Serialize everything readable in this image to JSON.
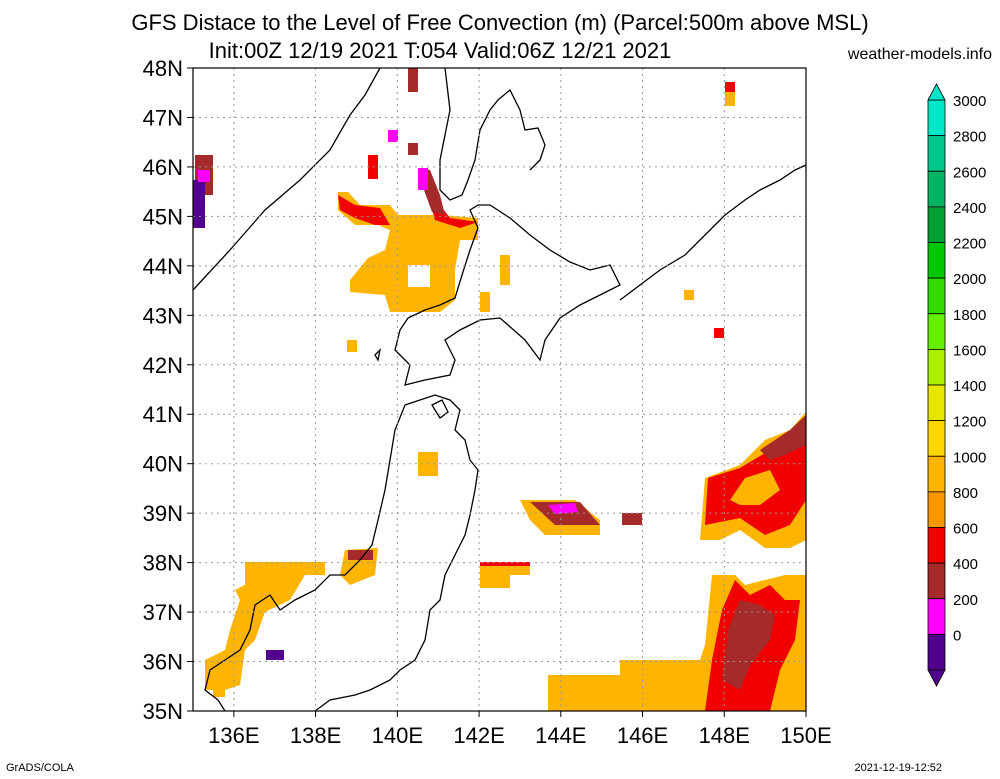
{
  "header": {
    "title_line1": "GFS Distace to the Level of Free Convection (m) (Parcel:500m above MSL)",
    "title_line2": "Init:00Z 12/19 2021 T:054 Valid:06Z 12/21 2021",
    "site": "weather-models.info"
  },
  "footer": {
    "left": "GrADS/COLA",
    "right": "2021-12-19-12:52"
  },
  "map": {
    "lat_labels": [
      "48N",
      "47N",
      "46N",
      "45N",
      "44N",
      "43N",
      "42N",
      "41N",
      "40N",
      "39N",
      "38N",
      "37N",
      "36N",
      "35N"
    ],
    "lon_labels": [
      "136E",
      "138E",
      "140E",
      "142E",
      "144E",
      "146E",
      "148E",
      "150E"
    ],
    "lon_range": [
      135,
      150
    ],
    "lat_range": [
      35,
      48
    ],
    "grid": true
  },
  "colorbar": {
    "labels": [
      "3000",
      "2800",
      "2600",
      "2400",
      "2200",
      "2000",
      "1800",
      "1600",
      "1400",
      "1200",
      "1000",
      "800",
      "600",
      "400",
      "200",
      "0"
    ],
    "colors": [
      "#00e6c8",
      "#00c88c",
      "#00b464",
      "#00a032",
      "#00c800",
      "#32dc00",
      "#64f000",
      "#aaf000",
      "#e6e600",
      "#ffd700",
      "#ffb400",
      "#fa9600",
      "#f00000",
      "#a52a2a",
      "#ff00ff",
      "#50008c"
    ]
  }
}
